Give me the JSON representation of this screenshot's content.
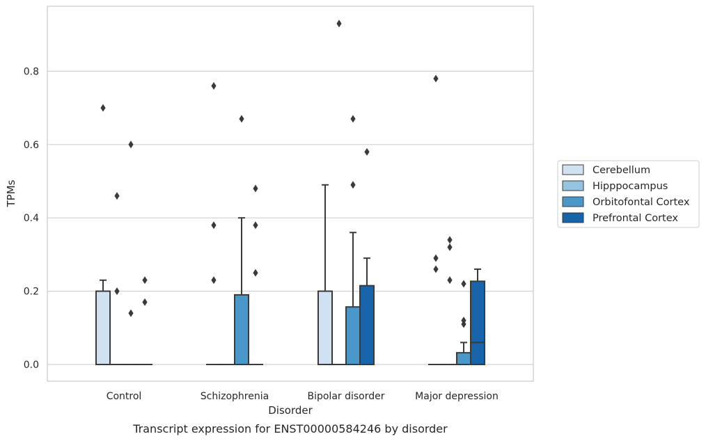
{
  "chart_data": {
    "type": "box",
    "caption": "Transcript expression for ENST00000584246 by disorder",
    "xlabel": "Disorder",
    "ylabel": "TPMs",
    "ylim": [
      -0.045,
      0.98
    ],
    "yticks": [
      0.0,
      0.2,
      0.4,
      0.6,
      0.8
    ],
    "ytick_labels": [
      "0.0",
      "0.2",
      "0.4",
      "0.6",
      "0.8"
    ],
    "grid": "horizontal",
    "legend_position": "right",
    "categories": [
      "Control",
      "Schizophrenia",
      "Bipolar disorder",
      "Major depression"
    ],
    "series": [
      {
        "name": "Cerebellum",
        "color": "#d0e1f2",
        "boxes": [
          {
            "q1": 0,
            "median": 0,
            "q3": 0.2,
            "whisker_low": 0,
            "whisker_high": 0.23,
            "outliers": [
              0.7
            ]
          },
          {
            "q1": 0,
            "median": 0,
            "q3": 0,
            "whisker_low": 0,
            "whisker_high": 0,
            "outliers": [
              0.76,
              0.38,
              0.23
            ]
          },
          {
            "q1": 0,
            "median": 0,
            "q3": 0.2,
            "whisker_low": 0,
            "whisker_high": 0.49,
            "outliers": []
          },
          {
            "q1": 0,
            "median": 0,
            "q3": 0,
            "whisker_low": 0,
            "whisker_high": 0,
            "outliers": [
              0.78,
              0.29,
              0.26
            ]
          }
        ]
      },
      {
        "name": "Hipppocampus",
        "color": "#94c4df",
        "boxes": [
          {
            "q1": 0,
            "median": 0,
            "q3": 0,
            "whisker_low": 0,
            "whisker_high": 0,
            "outliers": [
              0.46,
              0.2
            ]
          },
          {
            "q1": 0,
            "median": 0,
            "q3": 0,
            "whisker_low": 0,
            "whisker_high": 0,
            "outliers": []
          },
          {
            "q1": 0,
            "median": 0,
            "q3": 0,
            "whisker_low": 0,
            "whisker_high": 0,
            "outliers": [
              0.93
            ]
          },
          {
            "q1": 0,
            "median": 0,
            "q3": 0,
            "whisker_low": 0,
            "whisker_high": 0,
            "outliers": [
              0.34,
              0.32,
              0.23
            ]
          }
        ]
      },
      {
        "name": "Orbitofontal Cortex",
        "color": "#4a98c9",
        "boxes": [
          {
            "q1": 0,
            "median": 0,
            "q3": 0,
            "whisker_low": 0,
            "whisker_high": 0,
            "outliers": [
              0.6,
              0.14
            ]
          },
          {
            "q1": 0,
            "median": 0,
            "q3": 0.19,
            "whisker_low": 0,
            "whisker_high": 0.4,
            "outliers": [
              0.67
            ]
          },
          {
            "q1": 0,
            "median": 0,
            "q3": 0.157,
            "whisker_low": 0,
            "whisker_high": 0.36,
            "outliers": [
              0.67,
              0.49
            ]
          },
          {
            "q1": 0,
            "median": 0,
            "q3": 0.032,
            "whisker_low": 0,
            "whisker_high": 0.06,
            "outliers": [
              0.22,
              0.12,
              0.11
            ]
          }
        ]
      },
      {
        "name": "Prefrontal Cortex",
        "color": "#1764ab",
        "boxes": [
          {
            "q1": 0,
            "median": 0,
            "q3": 0,
            "whisker_low": 0,
            "whisker_high": 0,
            "outliers": [
              0.23,
              0.17
            ]
          },
          {
            "q1": 0,
            "median": 0,
            "q3": 0,
            "whisker_low": 0,
            "whisker_high": 0,
            "outliers": [
              0.48,
              0.38,
              0.25
            ]
          },
          {
            "q1": 0,
            "median": 0,
            "q3": 0.215,
            "whisker_low": 0,
            "whisker_high": 0.29,
            "outliers": [
              0.58
            ]
          },
          {
            "q1": 0,
            "median": 0.06,
            "q3": 0.227,
            "whisker_low": 0,
            "whisker_high": 0.26,
            "outliers": []
          }
        ]
      }
    ]
  }
}
